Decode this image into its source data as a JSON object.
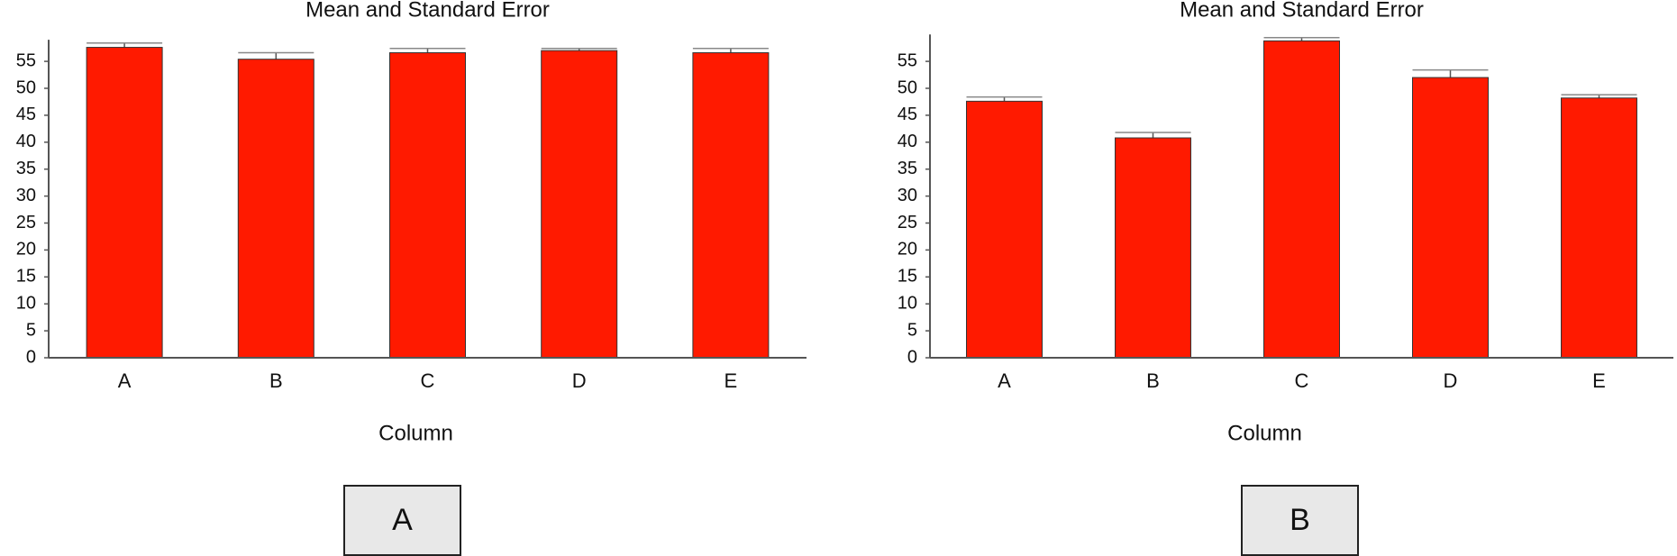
{
  "chart_data": [
    {
      "type": "bar",
      "title": "Mean and Standard Error",
      "x_label": "Column",
      "panel_label": "A",
      "categories": [
        "A",
        "B",
        "C",
        "D",
        "E"
      ],
      "values": [
        57.6,
        55.4,
        56.6,
        57.0,
        56.6
      ],
      "errors": [
        0.8,
        1.2,
        0.8,
        0.4,
        0.8
      ],
      "color": "#ff1a00",
      "ylim": [
        0,
        59
      ],
      "yticks": [
        0,
        5,
        10,
        15,
        20,
        25,
        30,
        35,
        40,
        45,
        50,
        55
      ],
      "grid": false
    },
    {
      "type": "bar",
      "title": "Mean and Standard Error",
      "x_label": "Column",
      "panel_label": "B",
      "categories": [
        "A",
        "B",
        "C",
        "D",
        "E"
      ],
      "values": [
        47.6,
        40.8,
        58.8,
        52.0,
        48.2
      ],
      "errors": [
        0.8,
        1.0,
        0.6,
        1.4,
        0.6
      ],
      "color": "#ff1a00",
      "ylim": [
        0,
        60
      ],
      "yticks": [
        0,
        5,
        10,
        15,
        20,
        25,
        30,
        35,
        40,
        45,
        50,
        55
      ],
      "grid": false
    }
  ]
}
